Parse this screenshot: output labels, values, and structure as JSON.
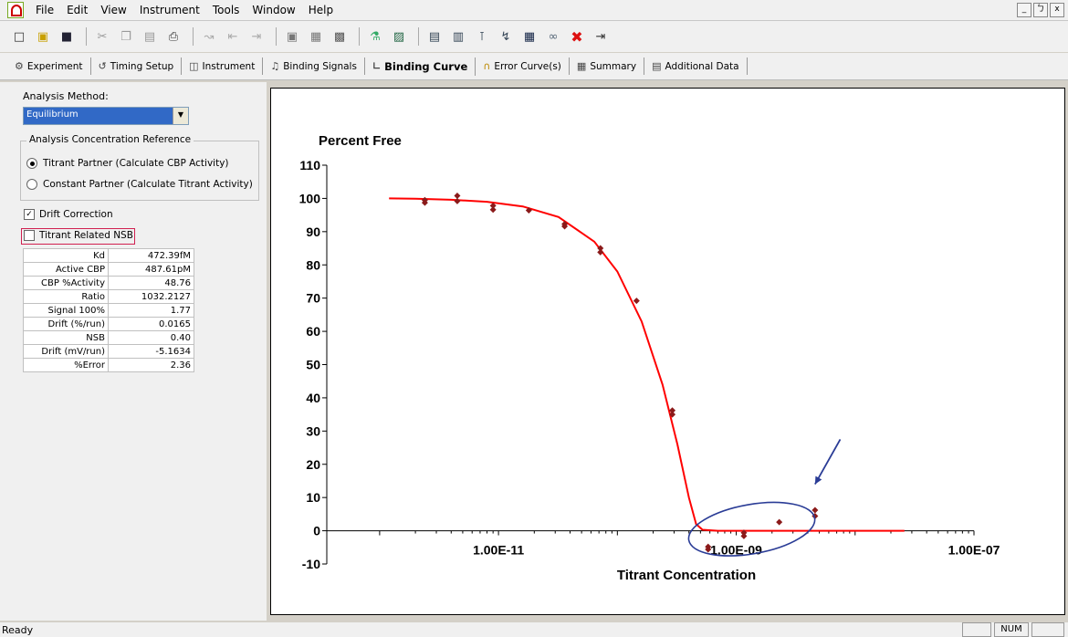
{
  "menu": [
    "File",
    "Edit",
    "View",
    "Instrument",
    "Tools",
    "Window",
    "Help"
  ],
  "window_buttons": [
    "_",
    "ㄅ",
    "x"
  ],
  "tabs": [
    {
      "label": "Experiment",
      "icon": "experiment-icon"
    },
    {
      "label": "Timing Setup",
      "icon": "timing-icon"
    },
    {
      "label": "Instrument",
      "icon": "instrument-icon"
    },
    {
      "label": "Binding Signals",
      "icon": "signals-icon"
    },
    {
      "label": "Binding Curve",
      "icon": "curve-icon",
      "active": true
    },
    {
      "label": "Error Curve(s)",
      "icon": "error-curve-icon"
    },
    {
      "label": "Summary",
      "icon": "summary-icon"
    },
    {
      "label": "Additional Data",
      "icon": "data-icon"
    }
  ],
  "left": {
    "analysis_method_label": "Analysis Method:",
    "analysis_method_value": "Equilibrium",
    "concentration_group_title": "Analysis Concentration Reference",
    "radio_titrant": "Titrant Partner (Calculate CBP Activity)",
    "radio_constant": "Constant Partner (Calculate Titrant Activity)",
    "drift_correction": "Drift Correction",
    "titrant_nsb": "Titrant Related NSB",
    "params": [
      {
        "key": "Kd",
        "value": "472.39fM"
      },
      {
        "key": "Active CBP",
        "value": "487.61pM"
      },
      {
        "key": "CBP %Activity",
        "value": "48.76"
      },
      {
        "key": "Ratio",
        "value": "1032.2127"
      },
      {
        "key": "Signal 100%",
        "value": "1.77"
      },
      {
        "key": "Drift (%/run)",
        "value": "0.0165"
      },
      {
        "key": "NSB",
        "value": "0.40"
      },
      {
        "key": "Drift (mV/run)",
        "value": "-5.1634"
      },
      {
        "key": "%Error",
        "value": "2.36"
      }
    ]
  },
  "chart_data": {
    "type": "scatter",
    "title": "Percent Free",
    "xlabel": "Titrant Concentration",
    "ylabel": "",
    "x_scale": "log",
    "xlim": [
      6e-13,
      1e-07
    ],
    "ylim": [
      -10,
      110
    ],
    "y_ticks": [
      -10,
      0,
      10,
      20,
      30,
      40,
      50,
      60,
      70,
      80,
      90,
      100,
      110
    ],
    "x_tick_labels": [
      "1.00E-11",
      "1.00E-09",
      "1.00E-07"
    ],
    "x_tick_values": [
      1e-11,
      1e-09,
      1e-07
    ],
    "points": [
      [
        2.4e-12,
        99.5
      ],
      [
        2.4e-12,
        98.7
      ],
      [
        4.5e-12,
        100.8
      ],
      [
        4.5e-12,
        99.2
      ],
      [
        9e-12,
        97.8
      ],
      [
        9e-12,
        96.6
      ],
      [
        1.8e-11,
        96.4
      ],
      [
        3.6e-11,
        92.3
      ],
      [
        3.6e-11,
        91.6
      ],
      [
        7.2e-11,
        85.0
      ],
      [
        7.2e-11,
        83.8
      ],
      [
        1.45e-10,
        69.2
      ],
      [
        2.9e-10,
        36.2
      ],
      [
        2.9e-10,
        35.0
      ],
      [
        5.8e-10,
        -4.8
      ],
      [
        5.8e-10,
        -5.6
      ],
      [
        1.16e-09,
        -0.6
      ],
      [
        1.16e-09,
        -1.6
      ],
      [
        2.3e-09,
        2.6
      ],
      [
        4.6e-09,
        6.2
      ],
      [
        4.6e-09,
        4.4
      ]
    ],
    "curve": [
      [
        1.2e-12,
        100
      ],
      [
        2e-12,
        99.9
      ],
      [
        4e-12,
        99.6
      ],
      [
        8e-12,
        99.0
      ],
      [
        1.6e-11,
        97.6
      ],
      [
        3.2e-11,
        94.4
      ],
      [
        6.4e-11,
        87.0
      ],
      [
        1e-10,
        78.0
      ],
      [
        1.6e-10,
        63.0
      ],
      [
        2.4e-10,
        44.0
      ],
      [
        3.2e-10,
        26.0
      ],
      [
        4e-10,
        10.0
      ],
      [
        4.6e-10,
        2.0
      ],
      [
        5.2e-10,
        0.3
      ],
      [
        7e-10,
        0
      ],
      [
        2.6e-08,
        0
      ]
    ],
    "grid": false,
    "point_color": "#8b1a1a",
    "curve_color": "#ff0000",
    "annotation_color": "#2a3c96"
  },
  "status": {
    "text": "Ready",
    "num": "NUM"
  }
}
